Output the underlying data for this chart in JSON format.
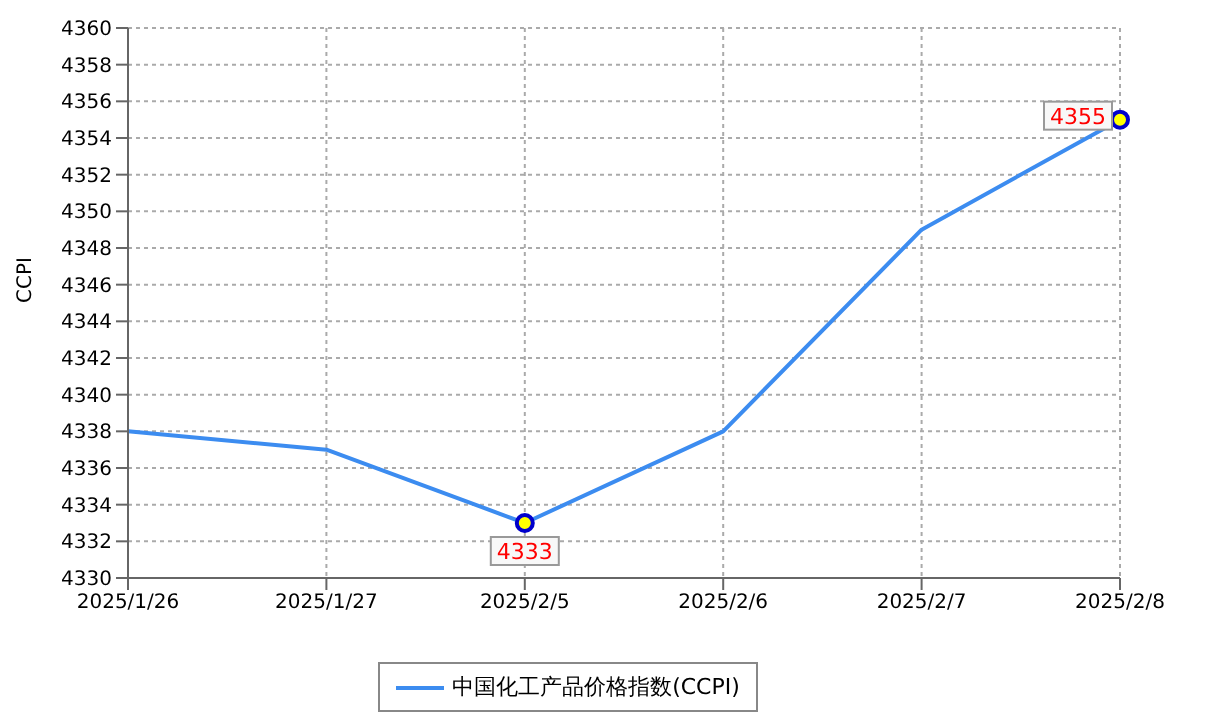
{
  "chart_data": {
    "type": "line",
    "ylabel": "CCPI",
    "categories": [
      "2025/1/26",
      "2025/1/27",
      "2025/2/5",
      "2025/2/6",
      "2025/2/7",
      "2025/2/8"
    ],
    "series": [
      {
        "name": "中国化工产品价格指数(CCPI)",
        "color": "#3c8cf0",
        "values": [
          4338,
          4337,
          4333,
          4338,
          4349,
          4355
        ],
        "value_labels": [
          null,
          null,
          "4333",
          null,
          null,
          "4355"
        ]
      },
      {
        "type": "scatter",
        "color": "#ffff00",
        "marker": "circle",
        "x": [
          "2025/2/5",
          "2025/2/8"
        ],
        "values": [
          4333,
          4355
        ]
      }
    ],
    "ylim": [
      4330,
      4360
    ],
    "yticks": [
      4330,
      4332,
      4334,
      4336,
      4338,
      4340,
      4342,
      4344,
      4346,
      4348,
      4350,
      4352,
      4354,
      4356,
      4358,
      4360
    ],
    "grid": true,
    "legend": "bottom",
    "marker": "none",
    "line_style": "solid"
  }
}
